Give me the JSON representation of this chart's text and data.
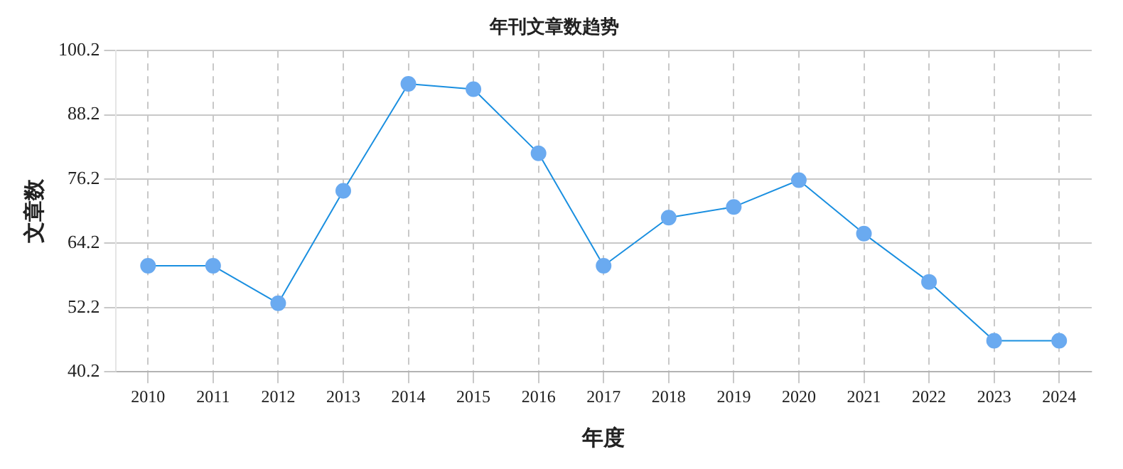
{
  "chart_data": {
    "type": "line",
    "title": "年刊文章数趋势",
    "xlabel": "年度",
    "ylabel": "文章数",
    "categories": [
      "2010",
      "2011",
      "2012",
      "2013",
      "2014",
      "2015",
      "2016",
      "2017",
      "2018",
      "2019",
      "2020",
      "2021",
      "2022",
      "2023",
      "2024"
    ],
    "series": [
      {
        "color": "#1a8fe0",
        "values": [
          60,
          60,
          53,
          74,
          94,
          93,
          81,
          60,
          69,
          71,
          76,
          66,
          57,
          46,
          46
        ]
      }
    ],
    "ylim": [
      40.2,
      100.2
    ],
    "yticks": [
      40.2,
      52.2,
      64.2,
      76.2,
      88.2,
      100.2
    ],
    "grid": true,
    "marker": "circle",
    "line_style": "solid",
    "legend": false
  }
}
